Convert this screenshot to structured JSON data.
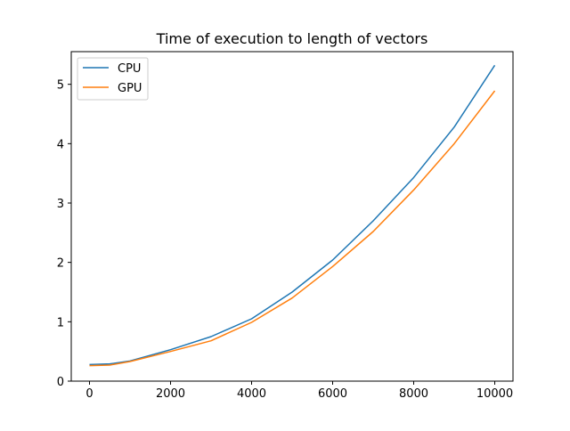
{
  "chart_data": {
    "type": "line",
    "title": "Time of execution to length of vectors",
    "xlabel": "",
    "ylabel": "",
    "xlim": [
      -450,
      10450
    ],
    "ylim": [
      0,
      5.55
    ],
    "xticks": [
      0,
      2000,
      4000,
      6000,
      8000,
      10000
    ],
    "yticks": [
      0,
      1,
      2,
      3,
      4,
      5
    ],
    "xtick_labels": [
      "0",
      "2000",
      "4000",
      "6000",
      "8000",
      "10000"
    ],
    "ytick_labels": [
      "0",
      "1",
      "2",
      "3",
      "4",
      "5"
    ],
    "grid": false,
    "legend": {
      "position": "top-left"
    },
    "x": [
      0,
      500,
      1000,
      2000,
      3000,
      4000,
      5000,
      6000,
      7000,
      8000,
      9000,
      10000
    ],
    "series": [
      {
        "name": "CPU",
        "color": "#1f77b4",
        "values": [
          0.28,
          0.29,
          0.34,
          0.53,
          0.75,
          1.05,
          1.5,
          2.04,
          2.7,
          3.43,
          4.28,
          5.32
        ]
      },
      {
        "name": "GPU",
        "color": "#ff7f0e",
        "values": [
          0.26,
          0.27,
          0.33,
          0.5,
          0.68,
          0.99,
          1.4,
          1.93,
          2.52,
          3.22,
          4.0,
          4.89
        ]
      }
    ]
  }
}
